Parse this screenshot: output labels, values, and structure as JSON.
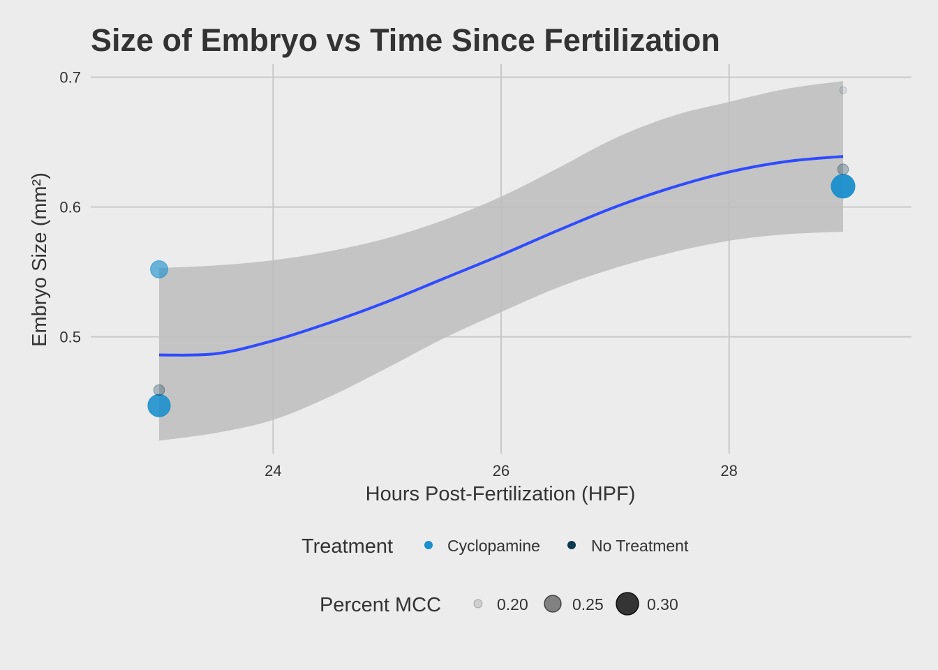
{
  "chart_data": {
    "type": "scatter",
    "title": "Size of Embryo vs Time Since Fertilization",
    "xlabel": "Hours Post-Fertilization (HPF)",
    "ylabel": "Embryo Size (mm²)",
    "xlim": [
      22.4,
      29.6
    ],
    "ylim": [
      0.41,
      0.71
    ],
    "x_ticks": [
      24,
      26,
      28
    ],
    "x_tick_labels": [
      "24",
      "26",
      "28"
    ],
    "y_ticks": [
      0.5,
      0.6,
      0.7
    ],
    "y_tick_labels": [
      "0.5",
      "0.6",
      "0.7"
    ],
    "grid": true,
    "background": "#ececec",
    "grid_color": "#c8c8c8",
    "series": [
      {
        "name": "Cyclopamine",
        "color": "#1a8fcc",
        "points": [
          {
            "x": 23,
            "y": 0.552,
            "mcc": 0.27
          },
          {
            "x": 23,
            "y": 0.447,
            "mcc": 0.31
          },
          {
            "x": 29,
            "y": 0.616,
            "mcc": 0.32
          }
        ]
      },
      {
        "name": "No Treatment",
        "color": "#0c3a4f",
        "points": [
          {
            "x": 23,
            "y": 0.459,
            "mcc": 0.22
          },
          {
            "x": 29,
            "y": 0.629,
            "mcc": 0.22
          },
          {
            "x": 29,
            "y": 0.69,
            "mcc": 0.19
          }
        ]
      }
    ],
    "smooth": {
      "color": "#2f4bff",
      "band_color": "#bdbdbd",
      "fit": [
        {
          "x": 23.0,
          "y": 0.486
        },
        {
          "x": 23.5,
          "y": 0.487
        },
        {
          "x": 24.0,
          "y": 0.497
        },
        {
          "x": 24.5,
          "y": 0.511
        },
        {
          "x": 25.0,
          "y": 0.527
        },
        {
          "x": 25.5,
          "y": 0.545
        },
        {
          "x": 26.0,
          "y": 0.563
        },
        {
          "x": 26.5,
          "y": 0.582
        },
        {
          "x": 27.0,
          "y": 0.6
        },
        {
          "x": 27.5,
          "y": 0.615
        },
        {
          "x": 28.0,
          "y": 0.627
        },
        {
          "x": 28.5,
          "y": 0.635
        },
        {
          "x": 29.0,
          "y": 0.639
        }
      ],
      "upper": [
        {
          "x": 23.0,
          "y": 0.553
        },
        {
          "x": 23.5,
          "y": 0.555
        },
        {
          "x": 24.0,
          "y": 0.559
        },
        {
          "x": 24.5,
          "y": 0.566
        },
        {
          "x": 25.0,
          "y": 0.576
        },
        {
          "x": 25.5,
          "y": 0.59
        },
        {
          "x": 26.0,
          "y": 0.608
        },
        {
          "x": 26.5,
          "y": 0.63
        },
        {
          "x": 27.0,
          "y": 0.653
        },
        {
          "x": 27.5,
          "y": 0.67
        },
        {
          "x": 28.0,
          "y": 0.681
        },
        {
          "x": 28.5,
          "y": 0.691
        },
        {
          "x": 29.0,
          "y": 0.697
        }
      ],
      "lower": [
        {
          "x": 23.0,
          "y": 0.42
        },
        {
          "x": 23.5,
          "y": 0.426
        },
        {
          "x": 24.0,
          "y": 0.436
        },
        {
          "x": 24.5,
          "y": 0.454
        },
        {
          "x": 25.0,
          "y": 0.476
        },
        {
          "x": 25.5,
          "y": 0.499
        },
        {
          "x": 26.0,
          "y": 0.519
        },
        {
          "x": 26.5,
          "y": 0.538
        },
        {
          "x": 27.0,
          "y": 0.553
        },
        {
          "x": 27.5,
          "y": 0.565
        },
        {
          "x": 28.0,
          "y": 0.574
        },
        {
          "x": 28.5,
          "y": 0.579
        },
        {
          "x": 29.0,
          "y": 0.581
        }
      ]
    },
    "legend": {
      "placement": "bottom",
      "treatment_title": "Treatment",
      "treatment_items": [
        {
          "label": "Cyclopamine",
          "color": "#1a8fcc"
        },
        {
          "label": "No Treatment",
          "color": "#0c3a4f"
        }
      ],
      "size_title": "Percent MCC",
      "size_items": [
        {
          "label": "0.20",
          "value": 0.2
        },
        {
          "label": "0.25",
          "value": 0.25
        },
        {
          "label": "0.30",
          "value": 0.3
        }
      ]
    }
  }
}
